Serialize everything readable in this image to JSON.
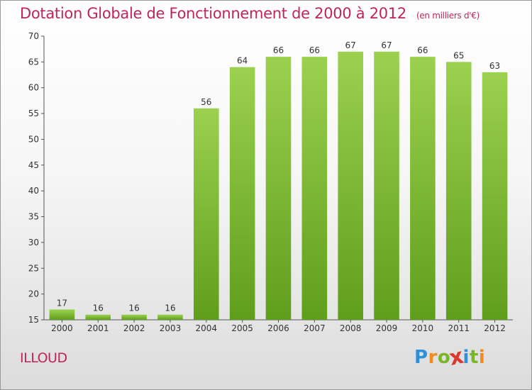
{
  "header": {
    "title": "Dotation Globale de Fonctionnement de 2000 à 2012",
    "subtitle": "(en milliers d'€)"
  },
  "footer": {
    "commune": "ILLOUD",
    "brand_letters": [
      "P",
      "r",
      "o",
      "x",
      "i",
      "t",
      "i"
    ],
    "brand_colors": [
      "#2f8fd8",
      "#f28b1f",
      "#7bb52a",
      "#d83a2f",
      "#2f8fd8",
      "#7bb52a",
      "#f28b1f"
    ]
  },
  "colors": {
    "title": "#c0245c",
    "bar_top": "#9bd14f",
    "bar_bottom": "#5f9e1b"
  },
  "chart_data": {
    "type": "bar",
    "categories": [
      "2000",
      "2001",
      "2002",
      "2003",
      "2004",
      "2005",
      "2006",
      "2007",
      "2008",
      "2009",
      "2010",
      "2011",
      "2012"
    ],
    "values": [
      17,
      16,
      16,
      16,
      56,
      64,
      66,
      66,
      67,
      67,
      66,
      65,
      63
    ],
    "ylim": [
      15,
      70
    ],
    "yticks": [
      15,
      20,
      25,
      30,
      35,
      40,
      45,
      50,
      55,
      60,
      65,
      70
    ],
    "grid": false,
    "legend": "none",
    "data_labels": true
  }
}
